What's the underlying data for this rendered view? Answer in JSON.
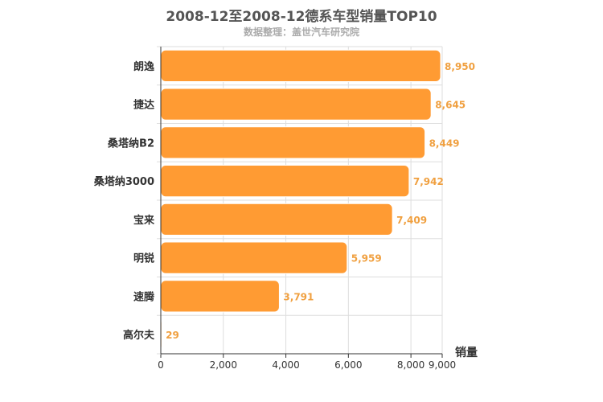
{
  "chart_data": {
    "type": "bar",
    "orientation": "horizontal",
    "title": "2008-12至2008-12德系车型销量TOP10",
    "subtitle": "数据整理：盖世汽车研究院",
    "categories": [
      "朗逸",
      "捷达",
      "桑塔纳B2",
      "桑塔纳3000",
      "宝来",
      "明锐",
      "速腾",
      "高尔夫"
    ],
    "values": [
      8950,
      8645,
      8449,
      7942,
      7409,
      5959,
      3791,
      29
    ],
    "value_labels": [
      "8,950",
      "8,645",
      "8,449",
      "7,942",
      "7,409",
      "5,959",
      "3,791",
      "29"
    ],
    "xlabel": "销量",
    "ylabel": "",
    "xlim": [
      0,
      9000
    ],
    "xticks": [
      0,
      2000,
      4000,
      6000,
      8000,
      9000
    ],
    "xtick_labels": [
      "0",
      "2,000",
      "4,000",
      "6,000",
      "8,000",
      "9,000"
    ],
    "grid": true,
    "bar_color": "#ff9b33",
    "value_label_color": "#f0a040"
  }
}
